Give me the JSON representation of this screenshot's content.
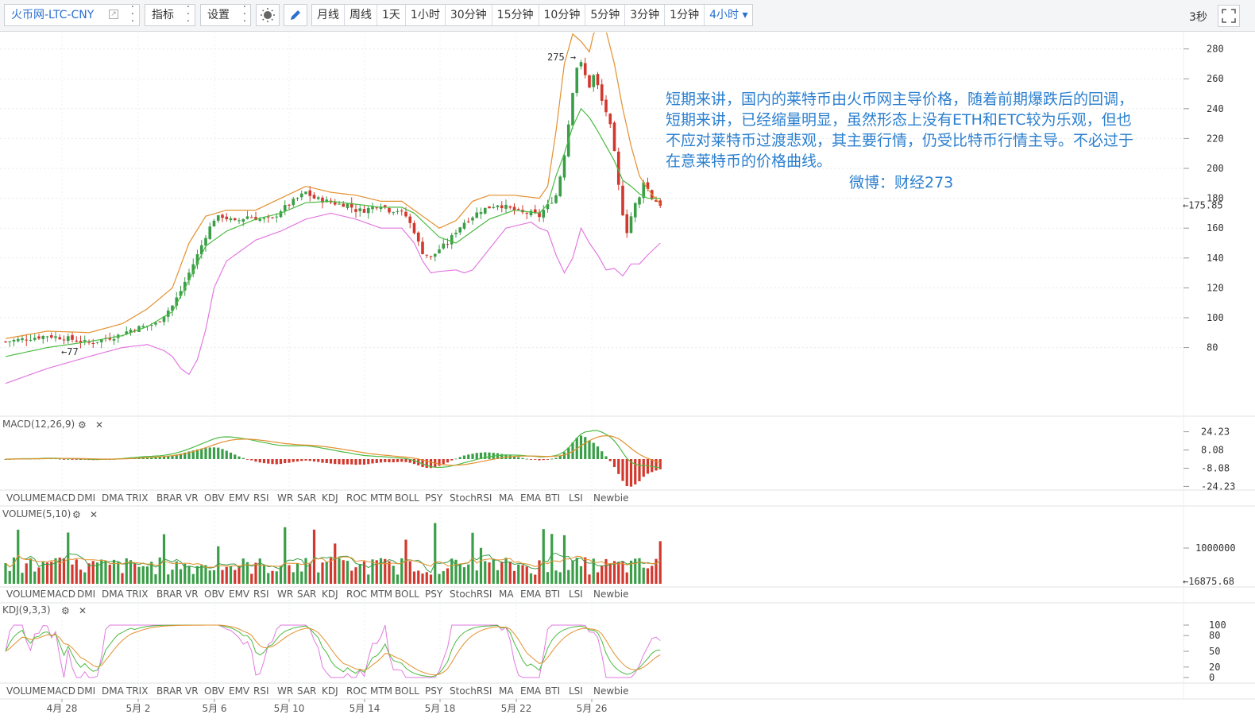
{
  "toolbar": {
    "symbol": "火币网-LTC-CNY",
    "indicators_label": "指标",
    "settings_label": "设置",
    "periods": [
      "月线",
      "周线",
      "1天",
      "1小时",
      "30分钟",
      "15分钟",
      "10分钟",
      "5分钟",
      "3分钟",
      "1分钟",
      "4小时"
    ],
    "active_period": "4小时",
    "refresh": "3秒"
  },
  "annotation": {
    "lines": [
      "短期来讲，国内的莱特币由火币网主导价格，随着前期爆跌后的回调，",
      "短期来讲，已经缩量明显，虽然形态上没有ETH和ETC较为乐观，但也",
      "不应对莱特币过渡悲观，其主要行情，仍受比特币行情主导。不必过于",
      "在意莱特币的价格曲线。"
    ],
    "signature": "微博：财经273"
  },
  "colors": {
    "up": "#3a9e48",
    "down": "#d2382d",
    "accent": "#2b6fcf",
    "price_tag": "#f07a2a",
    "boll_upper": "#e3902f",
    "boll_mid": "#4cbb43",
    "boll_lower": "#e27ae0"
  },
  "indicator_tabs": [
    "VOLUME",
    "MACD",
    "DMI",
    "DMA",
    "TRIX",
    "BRAR",
    "VR",
    "OBV",
    "EMV",
    "RSI",
    "WR",
    "SAR",
    "KDJ",
    "ROC",
    "MTM",
    "BOLL",
    "PSY",
    "StochRSI",
    "MA",
    "EMA",
    "BTI",
    "LSI",
    "Newbie"
  ],
  "chart_data": {
    "type": "candlestick",
    "main": {
      "y_ticks": [
        280,
        260,
        240,
        220,
        200,
        180,
        160,
        140,
        120,
        100,
        80
      ],
      "current_price_label": "←175.85",
      "current_price": 175.85,
      "max_marker": "275 →",
      "min_marker": "←77",
      "overlay": "BOLL",
      "close_path": [
        [
          0,
          84
        ],
        [
          5,
          86
        ],
        [
          10,
          88
        ],
        [
          15,
          86
        ],
        [
          20,
          83
        ],
        [
          24,
          86
        ],
        [
          27,
          88
        ],
        [
          30,
          92
        ],
        [
          33,
          94
        ],
        [
          36,
          96
        ],
        [
          38,
          102
        ],
        [
          40,
          108
        ],
        [
          42,
          118
        ],
        [
          44,
          130
        ],
        [
          46,
          142
        ],
        [
          48,
          155
        ],
        [
          50,
          166
        ],
        [
          52,
          168
        ],
        [
          55,
          164
        ],
        [
          58,
          168
        ],
        [
          61,
          166
        ],
        [
          64,
          166
        ],
        [
          66,
          172
        ],
        [
          68,
          176
        ],
        [
          70,
          180
        ],
        [
          72,
          184
        ],
        [
          74,
          180
        ],
        [
          77,
          178
        ],
        [
          80,
          176
        ],
        [
          82,
          176
        ],
        [
          84,
          172
        ],
        [
          86,
          172
        ],
        [
          88,
          174
        ],
        [
          90,
          176
        ],
        [
          92,
          172
        ],
        [
          94,
          172
        ],
        [
          96,
          168
        ],
        [
          98,
          158
        ],
        [
          99,
          150
        ],
        [
          100,
          144
        ],
        [
          102,
          140
        ],
        [
          104,
          146
        ],
        [
          106,
          150
        ],
        [
          108,
          158
        ],
        [
          110,
          164
        ],
        [
          112,
          168
        ],
        [
          114,
          172
        ],
        [
          116,
          174
        ],
        [
          118,
          176
        ],
        [
          120,
          174
        ],
        [
          122,
          172
        ],
        [
          124,
          170
        ],
        [
          126,
          170
        ],
        [
          128,
          168
        ],
        [
          129,
          172
        ],
        [
          130,
          175
        ],
        [
          132,
          182
        ],
        [
          133,
          195
        ],
        [
          134,
          210
        ],
        [
          135,
          230
        ],
        [
          136,
          252
        ],
        [
          137,
          268
        ],
        [
          138,
          270
        ],
        [
          139,
          262
        ],
        [
          140,
          255
        ],
        [
          141,
          262
        ],
        [
          142,
          255
        ],
        [
          143,
          245
        ],
        [
          144,
          238
        ],
        [
          145,
          228
        ],
        [
          146,
          210
        ],
        [
          147,
          188
        ],
        [
          148,
          170
        ],
        [
          149,
          158
        ],
        [
          150,
          168
        ],
        [
          151,
          176
        ],
        [
          152,
          180
        ],
        [
          153,
          192
        ],
        [
          154,
          186
        ],
        [
          155,
          180
        ],
        [
          156,
          178
        ],
        [
          157,
          176
        ]
      ],
      "boll_upper": [
        [
          0,
          86
        ],
        [
          10,
          91
        ],
        [
          20,
          90
        ],
        [
          28,
          96
        ],
        [
          34,
          106
        ],
        [
          40,
          120
        ],
        [
          44,
          150
        ],
        [
          48,
          168
        ],
        [
          53,
          172
        ],
        [
          60,
          172
        ],
        [
          66,
          180
        ],
        [
          72,
          188
        ],
        [
          78,
          184
        ],
        [
          84,
          182
        ],
        [
          90,
          178
        ],
        [
          95,
          178
        ],
        [
          98,
          172
        ],
        [
          104,
          160
        ],
        [
          108,
          165
        ],
        [
          112,
          178
        ],
        [
          116,
          182
        ],
        [
          122,
          182
        ],
        [
          128,
          180
        ],
        [
          130,
          188
        ],
        [
          132,
          225
        ],
        [
          134,
          270
        ],
        [
          136,
          290
        ],
        [
          138,
          285
        ],
        [
          140,
          278
        ],
        [
          141,
          290
        ],
        [
          142,
          294
        ],
        [
          144,
          292
        ],
        [
          146,
          270
        ],
        [
          148,
          240
        ],
        [
          150,
          215
        ],
        [
          151,
          205
        ],
        [
          152,
          195
        ],
        [
          154,
          186
        ],
        [
          157,
          176
        ]
      ],
      "boll_mid": [
        [
          0,
          74
        ],
        [
          10,
          80
        ],
        [
          20,
          84
        ],
        [
          28,
          88
        ],
        [
          34,
          94
        ],
        [
          40,
          104
        ],
        [
          44,
          125
        ],
        [
          48,
          148
        ],
        [
          53,
          158
        ],
        [
          60,
          166
        ],
        [
          66,
          170
        ],
        [
          72,
          177
        ],
        [
          78,
          178
        ],
        [
          84,
          176
        ],
        [
          90,
          174
        ],
        [
          95,
          174
        ],
        [
          98,
          170
        ],
        [
          104,
          154
        ],
        [
          108,
          150
        ],
        [
          112,
          158
        ],
        [
          116,
          166
        ],
        [
          122,
          172
        ],
        [
          128,
          170
        ],
        [
          130,
          176
        ],
        [
          132,
          195
        ],
        [
          134,
          210
        ],
        [
          136,
          228
        ],
        [
          138,
          240
        ],
        [
          140,
          234
        ],
        [
          142,
          225
        ],
        [
          144,
          215
        ],
        [
          146,
          205
        ],
        [
          148,
          192
        ],
        [
          150,
          188
        ],
        [
          152,
          183
        ],
        [
          154,
          180
        ],
        [
          157,
          180
        ]
      ],
      "boll_lower": [
        [
          0,
          56
        ],
        [
          10,
          66
        ],
        [
          20,
          74
        ],
        [
          28,
          80
        ],
        [
          34,
          82
        ],
        [
          38,
          78
        ],
        [
          40,
          74
        ],
        [
          42,
          66
        ],
        [
          44,
          62
        ],
        [
          46,
          72
        ],
        [
          48,
          92
        ],
        [
          50,
          120
        ],
        [
          53,
          138
        ],
        [
          60,
          152
        ],
        [
          66,
          158
        ],
        [
          72,
          166
        ],
        [
          78,
          170
        ],
        [
          84,
          166
        ],
        [
          90,
          160
        ],
        [
          95,
          160
        ],
        [
          98,
          150
        ],
        [
          100,
          138
        ],
        [
          102,
          130
        ],
        [
          104,
          131
        ],
        [
          108,
          132
        ],
        [
          110,
          130
        ],
        [
          112,
          132
        ],
        [
          116,
          146
        ],
        [
          120,
          160
        ],
        [
          126,
          164
        ],
        [
          128,
          160
        ],
        [
          130,
          158
        ],
        [
          132,
          142
        ],
        [
          134,
          130
        ],
        [
          136,
          140
        ],
        [
          138,
          160
        ],
        [
          140,
          150
        ],
        [
          142,
          142
        ],
        [
          144,
          132
        ],
        [
          146,
          133
        ],
        [
          148,
          128
        ],
        [
          150,
          136
        ],
        [
          152,
          136
        ],
        [
          154,
          142
        ],
        [
          157,
          150
        ]
      ]
    },
    "macd": {
      "label": "MACD(12,26,9)",
      "y_ticks": [
        24.23,
        8.08,
        -8.08,
        -24.23
      ],
      "params": "12,26,9"
    },
    "volume": {
      "label": "VOLUME(5,10)",
      "y_ticks": [
        1000000
      ],
      "current_label": "←16875.68",
      "current_value": 16875.68
    },
    "kdj": {
      "label": "KDJ(9,3,3)",
      "y_ticks": [
        100,
        80,
        50,
        20,
        0
      ]
    },
    "x_labels": [
      "4月 28",
      "5月 2",
      "5月 6",
      "5月 10",
      "5月 14",
      "5月 18",
      "5月 22",
      "5月 26"
    ]
  }
}
